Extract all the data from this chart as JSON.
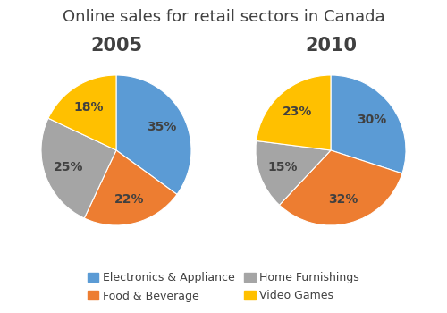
{
  "title": "Online sales for retail sectors in Canada",
  "title_fontsize": 13,
  "year_labels": [
    "2005",
    "2010"
  ],
  "year_fontsize": 15,
  "categories": [
    "Electronics & Appliance",
    "Food & Beverage",
    "Home Furnishings",
    "Video Games"
  ],
  "colors": [
    "#5B9BD5",
    "#ED7D31",
    "#A5A5A5",
    "#FFC000"
  ],
  "values_2005": [
    35,
    22,
    25,
    18
  ],
  "values_2010": [
    30,
    32,
    15,
    23
  ],
  "startangle_2005": 90,
  "startangle_2010": 90,
  "legend_fontsize": 9,
  "pct_fontsize": 10,
  "background_color": "#FFFFFF"
}
